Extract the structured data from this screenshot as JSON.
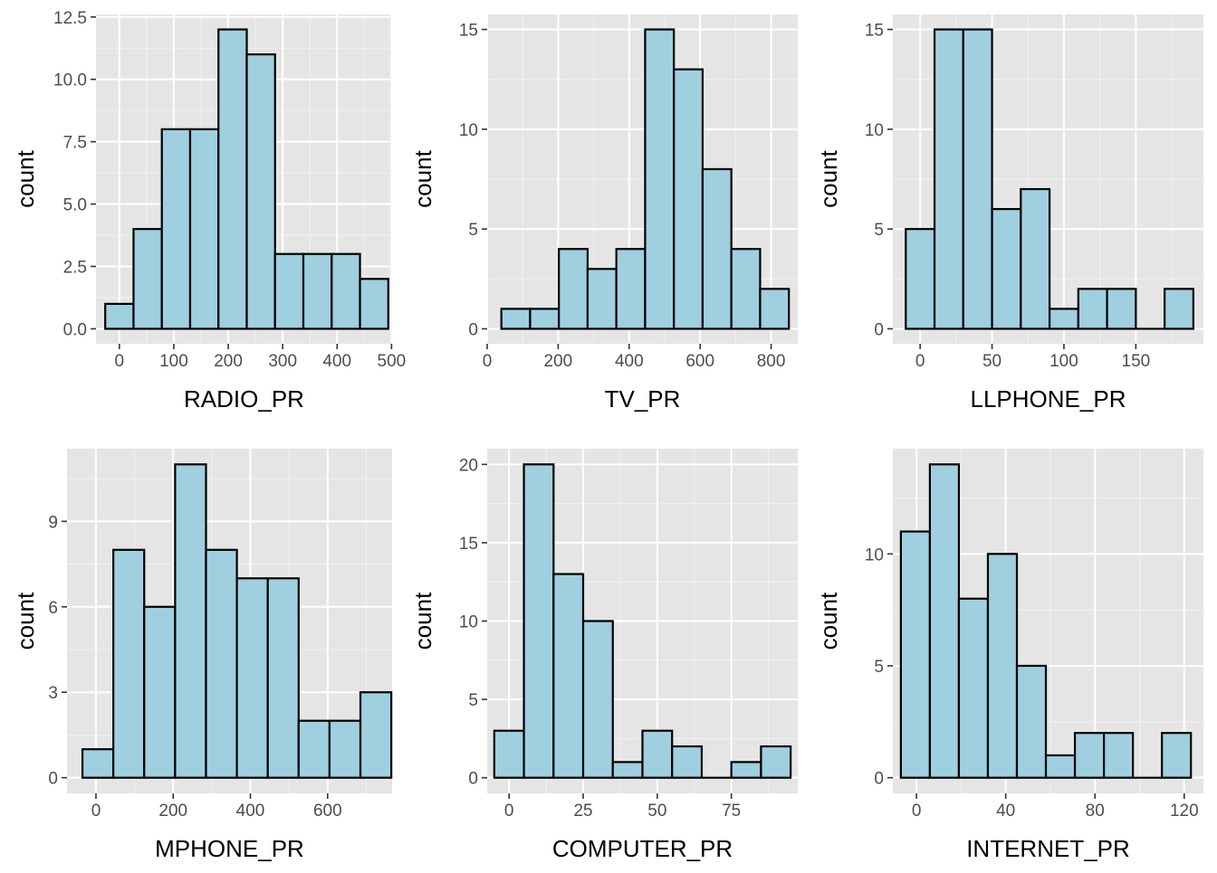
{
  "style": {
    "panel_background": "#e5e5e5",
    "grid_major": "#ffffff",
    "grid_minor": "#f2f2f2",
    "bar_fill": "#a0cfe0",
    "bar_outline": "#000000",
    "tick_text": "#4d4d4d",
    "tick_mark": "#333333"
  },
  "chart_data": [
    {
      "type": "histogram",
      "xlabel": "RADIO_PR",
      "ylabel": "count",
      "xlim": [
        -43,
        501
      ],
      "ylim": [
        -0.6,
        12.6
      ],
      "xticks": [
        0,
        100,
        200,
        300,
        400,
        500
      ],
      "xtick_labels": [
        "0",
        "100",
        "200",
        "300",
        "400",
        "500"
      ],
      "yticks": [
        0,
        2.5,
        5,
        7.5,
        10,
        12.5
      ],
      "ytick_labels": [
        "0.0",
        "2.5",
        "5.0",
        "7.5",
        "10.0",
        "12.5"
      ],
      "bin_edges": [
        -26,
        26,
        78,
        130,
        182,
        234,
        286,
        338,
        390,
        442,
        494
      ],
      "counts": [
        1,
        4,
        8,
        8,
        12,
        11,
        3,
        3,
        3,
        2
      ],
      "grid": true
    },
    {
      "type": "histogram",
      "xlabel": "TV_PR",
      "ylabel": "count",
      "xlim": [
        0,
        875
      ],
      "ylim": [
        -0.75,
        15.75
      ],
      "xticks": [
        0,
        200,
        400,
        600,
        800
      ],
      "xtick_labels": [
        "0",
        "200",
        "400",
        "600",
        "800"
      ],
      "yticks": [
        0,
        5,
        10,
        15
      ],
      "ytick_labels": [
        "0",
        "5",
        "10",
        "15"
      ],
      "bin_edges": [
        40,
        121,
        202,
        283,
        364,
        445,
        526,
        607,
        688,
        769,
        850
      ],
      "counts": [
        1,
        1,
        4,
        3,
        4,
        15,
        13,
        8,
        4,
        2
      ],
      "grid": true
    },
    {
      "type": "histogram",
      "xlabel": "LLPHONE_PR",
      "ylabel": "count",
      "xlim": [
        -19,
        197
      ],
      "ylim": [
        -0.75,
        15.75
      ],
      "xticks": [
        0,
        50,
        100,
        150
      ],
      "xtick_labels": [
        "0",
        "50",
        "100",
        "150"
      ],
      "yticks": [
        0,
        5,
        10,
        15
      ],
      "ytick_labels": [
        "0",
        "5",
        "10",
        "15"
      ],
      "bin_edges": [
        -10,
        10,
        30,
        50,
        70,
        90,
        110,
        130,
        150,
        170,
        190
      ],
      "counts": [
        5,
        15,
        15,
        6,
        7,
        1,
        2,
        2,
        0,
        2
      ],
      "grid": true
    },
    {
      "type": "histogram",
      "xlabel": "MPHONE_PR",
      "ylabel": "count",
      "xlim": [
        -75,
        767
      ],
      "ylim": [
        -0.55,
        11.55
      ],
      "xticks": [
        0,
        200,
        400,
        600
      ],
      "xtick_labels": [
        "0",
        "200",
        "400",
        "600"
      ],
      "yticks": [
        0,
        3,
        6,
        9
      ],
      "ytick_labels": [
        "0",
        "3",
        "6",
        "9"
      ],
      "bin_edges": [
        -35,
        45,
        125,
        205,
        285,
        365,
        445,
        525,
        605,
        685,
        765
      ],
      "counts": [
        1,
        8,
        6,
        11,
        8,
        7,
        7,
        2,
        2,
        3
      ],
      "grid": true
    },
    {
      "type": "histogram",
      "xlabel": "COMPUTER_PR",
      "ylabel": "count",
      "xlim": [
        -7.4,
        97.4
      ],
      "ylim": [
        -1,
        21
      ],
      "xticks": [
        0,
        25,
        50,
        75
      ],
      "xtick_labels": [
        "0",
        "25",
        "50",
        "75"
      ],
      "yticks": [
        0,
        5,
        10,
        15,
        20
      ],
      "ytick_labels": [
        "0",
        "5",
        "10",
        "15",
        "20"
      ],
      "bin_edges": [
        -5,
        5,
        15,
        25,
        35,
        45,
        55,
        65,
        75,
        85,
        95
      ],
      "counts": [
        3,
        20,
        13,
        10,
        1,
        3,
        2,
        0,
        1,
        2
      ],
      "grid": true
    },
    {
      "type": "histogram",
      "xlabel": "INTERNET_PR",
      "ylabel": "count",
      "xlim": [
        -10.6,
        128.6
      ],
      "ylim": [
        -0.7,
        14.7
      ],
      "xticks": [
        0,
        40,
        80,
        120
      ],
      "xtick_labels": [
        "0",
        "40",
        "80",
        "120"
      ],
      "yticks": [
        0,
        5,
        10
      ],
      "ytick_labels": [
        "0",
        "5",
        "10"
      ],
      "bin_edges": [
        -7,
        6,
        19,
        32,
        45,
        58,
        71,
        84,
        97,
        110,
        123
      ],
      "counts": [
        11,
        14,
        8,
        10,
        5,
        1,
        2,
        2,
        0,
        2
      ],
      "grid": true
    }
  ]
}
